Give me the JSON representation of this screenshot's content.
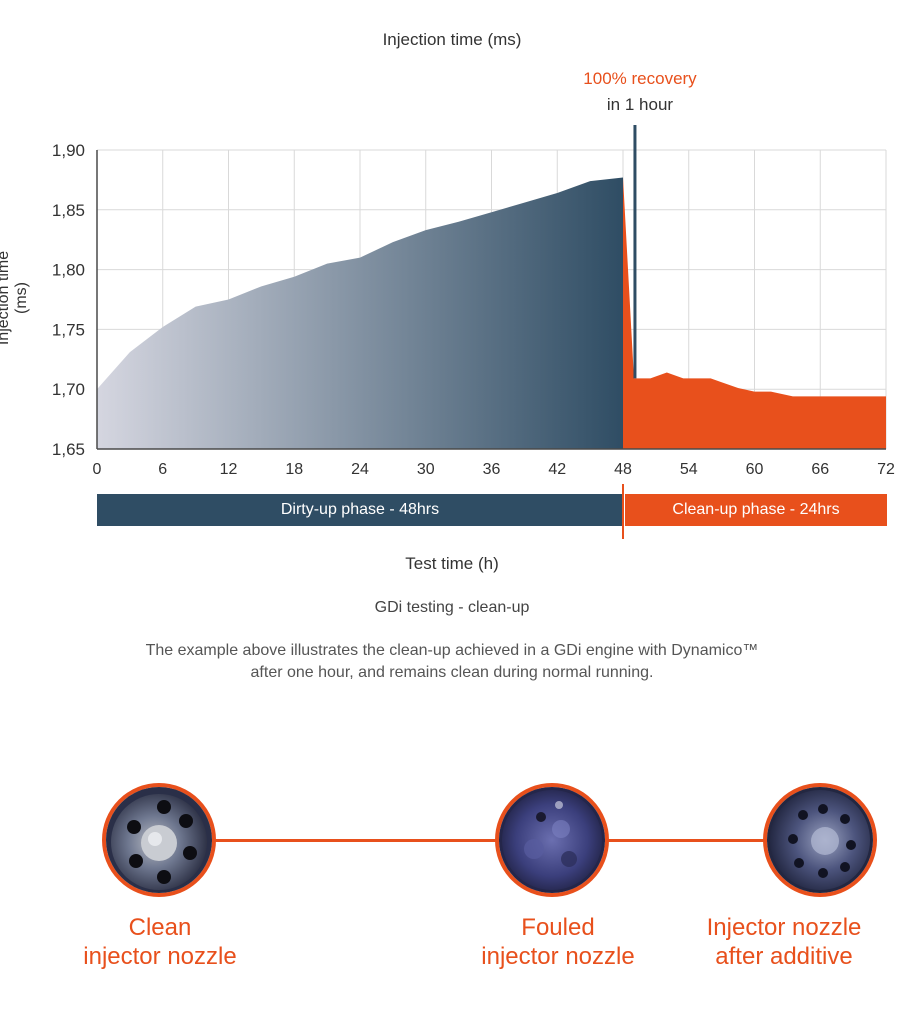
{
  "chart_data": {
    "type": "area",
    "title": "Injection time (ms)",
    "xlabel": "Test time (h)",
    "ylabel": "Injection time (ms)",
    "xlim": [
      0,
      72
    ],
    "ylim": [
      1.65,
      1.9
    ],
    "x_ticks": [
      "0",
      "6",
      "12",
      "18",
      "24",
      "30",
      "36",
      "42",
      "48",
      "54",
      "60",
      "66",
      "72"
    ],
    "y_ticks": [
      "1,65",
      "1,70",
      "1,75",
      "1,80",
      "1,85",
      "1,90"
    ],
    "grid": true,
    "colors": {
      "dirty_start": "#d5d6e0",
      "dirty_end": "#2f4d64",
      "clean": "#e8501c"
    },
    "series": [
      {
        "values_x": [
          0,
          3,
          6,
          9,
          12,
          15,
          18,
          21,
          24,
          27,
          30,
          33,
          36,
          39,
          42,
          45,
          48
        ],
        "values_y": [
          1.7,
          1.731,
          1.752,
          1.769,
          1.775,
          1.786,
          1.794,
          1.805,
          1.81,
          1.823,
          1.833,
          1.84,
          1.848,
          1.856,
          1.864,
          1.874,
          1.877
        ]
      },
      {
        "values_x": [
          48,
          49,
          50.5,
          52,
          53.5,
          56,
          58.5,
          60,
          61.5,
          63.5,
          72
        ],
        "values_y": [
          1.877,
          1.709,
          1.709,
          1.714,
          1.709,
          1.709,
          1.701,
          1.698,
          1.698,
          1.694,
          1.694
        ]
      }
    ],
    "annotation": {
      "line1": "100% recovery",
      "line2": "in 1 hour",
      "x": 49
    },
    "phases": [
      {
        "label": "Dirty-up phase - 48hrs",
        "start": 0,
        "end": 48
      },
      {
        "label": "Clean-up phase - 24hrs",
        "start": 48,
        "end": 72
      }
    ]
  },
  "caption": "GDi testing - clean-up",
  "description_line1": "The example above illustrates the clean-up achieved in a GDi engine with Dynamico™",
  "description_line2": "after one hour, and remains clean during normal running.",
  "nozzles": [
    {
      "line1": "Clean",
      "line2": "injector nozzle"
    },
    {
      "line1": "Fouled",
      "line2": "injector nozzle"
    },
    {
      "line1": "Injector nozzle",
      "line2": "after additive"
    }
  ]
}
